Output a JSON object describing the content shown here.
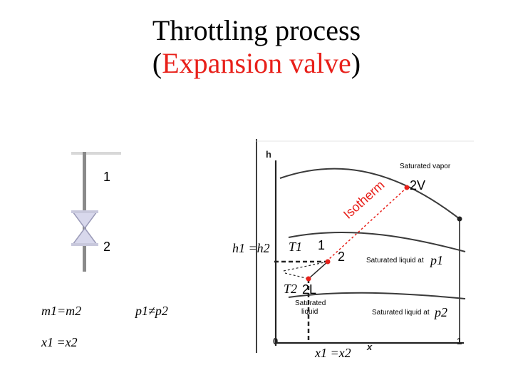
{
  "title": {
    "line1": "Throttling process",
    "line2_open": "(",
    "line2_accent": "Expansion valve",
    "line2_close": ")"
  },
  "valve": {
    "state_in": "1",
    "state_out": "2",
    "mass_relation": "m1=m2",
    "quality_relation": "x1 =x2",
    "pressure_relation": "p1≠p2",
    "enthalpy_relation": "h1 =h2"
  },
  "diagram": {
    "y_axis": "h",
    "x_axis": "x",
    "x_tick_0": "0",
    "x_tick_1": "1",
    "saturated_vapor": "Saturated vapor",
    "point_2v": "2V",
    "isotherm": "Isotherm",
    "t1": "T1",
    "point_1": "1",
    "point_2": "2",
    "sat_liquid_p1": "Saturated liquid at",
    "p1": "p1",
    "t2": "T2",
    "point_2l": "2L",
    "saturated_liquid_line1": "Saturated",
    "saturated_liquid_line2": "liquid",
    "sat_liquid_p2": "Saturated liquid at",
    "p2": "p2",
    "quality_relation": "x1 =x2"
  },
  "colors": {
    "accent": "#e8201a",
    "dashed_line": "#e8201a",
    "point": "#e8201a",
    "curve": "#3a3a3a"
  }
}
